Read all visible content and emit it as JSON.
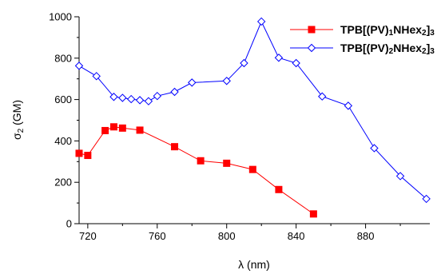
{
  "chart_data": {
    "type": "line",
    "xlabel": "λ (nm)",
    "ylabel": {
      "base": "σ",
      "sub": "2",
      "rest": " (GM)"
    },
    "xlim": [
      715,
      917
    ],
    "ylim": [
      0,
      1000
    ],
    "xticks": [
      720,
      760,
      800,
      840,
      880
    ],
    "yticks": [
      0,
      200,
      400,
      600,
      800,
      1000
    ],
    "grid": false,
    "legend_position": "top-right",
    "series": [
      {
        "legend_parts": [
          [
            "TPB[(PV)",
            false
          ],
          [
            "1",
            true
          ],
          [
            "NHex",
            false
          ],
          [
            "2",
            true
          ],
          [
            "]",
            false
          ],
          [
            "3",
            true
          ]
        ],
        "color": "#ff0000",
        "marker": "filled-square",
        "x": [
          715,
          720,
          730,
          735,
          740,
          750,
          770,
          785,
          800,
          815,
          830,
          850
        ],
        "y": [
          340,
          330,
          450,
          468,
          462,
          452,
          372,
          304,
          292,
          262,
          165,
          47
        ]
      },
      {
        "legend_parts": [
          [
            "TPB[(PV)",
            false
          ],
          [
            "2",
            true
          ],
          [
            "NHex",
            false
          ],
          [
            "2",
            true
          ],
          [
            "]",
            false
          ],
          [
            "3",
            true
          ]
        ],
        "color": "#0000ff",
        "marker": "open-diamond",
        "x": [
          715,
          725,
          735,
          740,
          745,
          750,
          755,
          760,
          770,
          780,
          800,
          810,
          820,
          830,
          840,
          855,
          870,
          885,
          900,
          915
        ],
        "y": [
          763,
          713,
          613,
          608,
          602,
          597,
          592,
          617,
          637,
          682,
          690,
          776,
          977,
          802,
          776,
          615,
          570,
          365,
          230,
          120
        ]
      }
    ]
  }
}
